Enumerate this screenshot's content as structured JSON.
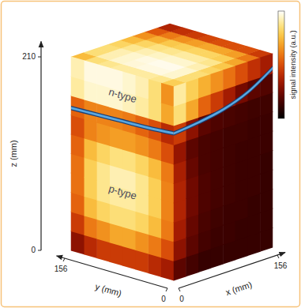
{
  "chart_data": {
    "type": "heatmap3d",
    "xlabel": "x (mm)",
    "ylabel": "y (mm)",
    "zlabel": "z (mm)",
    "xlim": [
      0,
      156
    ],
    "ylim": [
      0,
      156
    ],
    "zlim": [
      0,
      210
    ],
    "xticks": [
      0,
      156
    ],
    "yticks": [
      0,
      156
    ],
    "zticks": [
      0,
      210
    ],
    "annotations": [
      "n-type",
      "p-type"
    ],
    "colorbar": {
      "label": "signal intensity (a.u.)",
      "range": [
        0,
        1
      ]
    },
    "side_x0": {
      "y_bins": [
        0,
        19.5,
        39,
        58.5,
        78,
        97.5,
        117,
        136.5,
        156
      ],
      "z_bins": [
        0,
        21,
        42,
        63,
        84,
        105,
        126,
        147,
        168,
        189,
        210
      ],
      "values": [
        [
          0.35,
          0.4,
          0.45,
          0.45,
          0.45,
          0.45,
          0.4,
          0.3
        ],
        [
          0.5,
          0.6,
          0.65,
          0.7,
          0.7,
          0.65,
          0.6,
          0.45
        ],
        [
          0.6,
          0.75,
          0.82,
          0.85,
          0.85,
          0.82,
          0.75,
          0.55
        ],
        [
          0.62,
          0.8,
          0.88,
          0.9,
          0.9,
          0.88,
          0.8,
          0.58
        ],
        [
          0.62,
          0.8,
          0.88,
          0.92,
          0.92,
          0.88,
          0.8,
          0.58
        ],
        [
          0.6,
          0.75,
          0.82,
          0.86,
          0.86,
          0.82,
          0.75,
          0.55
        ],
        [
          0.5,
          0.6,
          0.65,
          0.68,
          0.68,
          0.66,
          0.62,
          0.5
        ],
        [
          0.4,
          0.5,
          0.55,
          0.6,
          0.62,
          0.62,
          0.62,
          0.55
        ],
        [
          0.7,
          0.85,
          0.9,
          0.93,
          0.95,
          0.95,
          0.95,
          0.9
        ],
        [
          0.65,
          0.85,
          0.92,
          0.95,
          0.97,
          0.97,
          0.97,
          0.92
        ]
      ]
    },
    "side_y0": {
      "x_bins": [
        0,
        19.5,
        39,
        58.5,
        78,
        97.5,
        117,
        136.5,
        156
      ],
      "z_bins": [
        0,
        21,
        42,
        63,
        84,
        105,
        126,
        147,
        168,
        189,
        210
      ],
      "values": [
        [
          0.2,
          0.15,
          0.12,
          0.12,
          0.12,
          0.12,
          0.12,
          0.12
        ],
        [
          0.3,
          0.2,
          0.15,
          0.13,
          0.13,
          0.12,
          0.12,
          0.12
        ],
        [
          0.35,
          0.22,
          0.16,
          0.14,
          0.13,
          0.13,
          0.12,
          0.12
        ],
        [
          0.38,
          0.24,
          0.17,
          0.15,
          0.14,
          0.13,
          0.13,
          0.12
        ],
        [
          0.38,
          0.24,
          0.17,
          0.15,
          0.14,
          0.13,
          0.13,
          0.12
        ],
        [
          0.36,
          0.22,
          0.16,
          0.15,
          0.14,
          0.13,
          0.13,
          0.13
        ],
        [
          0.32,
          0.2,
          0.16,
          0.15,
          0.14,
          0.14,
          0.13,
          0.13
        ],
        [
          0.45,
          0.3,
          0.2,
          0.17,
          0.16,
          0.15,
          0.14,
          0.14
        ],
        [
          0.85,
          0.7,
          0.55,
          0.45,
          0.35,
          0.25,
          0.2,
          0.18
        ],
        [
          0.9,
          0.8,
          0.72,
          0.65,
          0.58,
          0.5,
          0.42,
          0.35
        ]
      ]
    },
    "top": {
      "x_bins": [
        0,
        19.5,
        39,
        58.5,
        78,
        97.5,
        117,
        136.5,
        156
      ],
      "y_bins": [
        0,
        19.5,
        39,
        58.5,
        78,
        97.5,
        117,
        136.5,
        156
      ],
      "values": [
        [
          0.8,
          0.85,
          0.85,
          0.82,
          0.78,
          0.7,
          0.6,
          0.45
        ],
        [
          0.88,
          0.95,
          0.95,
          0.92,
          0.88,
          0.8,
          0.68,
          0.5
        ],
        [
          0.9,
          0.97,
          0.98,
          0.95,
          0.9,
          0.82,
          0.7,
          0.5
        ],
        [
          0.9,
          0.97,
          0.98,
          0.95,
          0.9,
          0.82,
          0.7,
          0.5
        ],
        [
          0.9,
          0.96,
          0.97,
          0.94,
          0.88,
          0.8,
          0.68,
          0.48
        ],
        [
          0.88,
          0.95,
          0.95,
          0.92,
          0.86,
          0.78,
          0.65,
          0.45
        ],
        [
          0.85,
          0.92,
          0.92,
          0.88,
          0.82,
          0.72,
          0.6,
          0.42
        ],
        [
          0.75,
          0.85,
          0.85,
          0.82,
          0.75,
          0.65,
          0.52,
          0.38
        ]
      ]
    },
    "junction": {
      "color": "#5aa7e0",
      "side_x0": {
        "y": [
          0,
          39,
          78,
          117,
          156
        ],
        "z": [
          160,
          158,
          157,
          156,
          155
        ]
      },
      "side_y0": {
        "x": [
          0,
          39,
          78,
          117,
          156
        ],
        "z": [
          160,
          163,
          168,
          178,
          195
        ]
      }
    }
  }
}
